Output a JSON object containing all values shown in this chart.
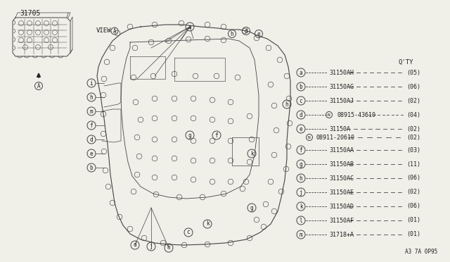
{
  "bg_color": "#f0efe8",
  "title_part": "31705",
  "view_label": "VIEW",
  "footer": "A3 7A 0P95",
  "legend_header": "Q'TY",
  "legend_items": [
    {
      "letter": "a",
      "part": "31150AH",
      "qty": "(05)"
    },
    {
      "letter": "b",
      "part": "31150AG",
      "qty": "(06)"
    },
    {
      "letter": "c",
      "part": "31150AJ",
      "qty": "(02)"
    },
    {
      "letter": "d",
      "part": "08915-43610",
      "qty": "(04)",
      "prefix": "N"
    },
    {
      "letter": "e",
      "part": "31150A",
      "qty": "(02)",
      "sub": "08911-20610",
      "sub_qty": "(02)",
      "sub_prefix": "N"
    },
    {
      "letter": "f",
      "part": "31150AA",
      "qty": "(03)"
    },
    {
      "letter": "g",
      "part": "31150AB",
      "qty": "(11)"
    },
    {
      "letter": "h",
      "part": "31150AC",
      "qty": "(06)"
    },
    {
      "letter": "j",
      "part": "31150AE",
      "qty": "(02)"
    },
    {
      "letter": "k",
      "part": "31150AD",
      "qty": "(06)"
    },
    {
      "letter": "l",
      "part": "31150AF",
      "qty": "(01)"
    },
    {
      "letter": "m",
      "part": "31718+A",
      "qty": "(01)"
    }
  ],
  "line_color": "#444444",
  "text_color": "#222222"
}
